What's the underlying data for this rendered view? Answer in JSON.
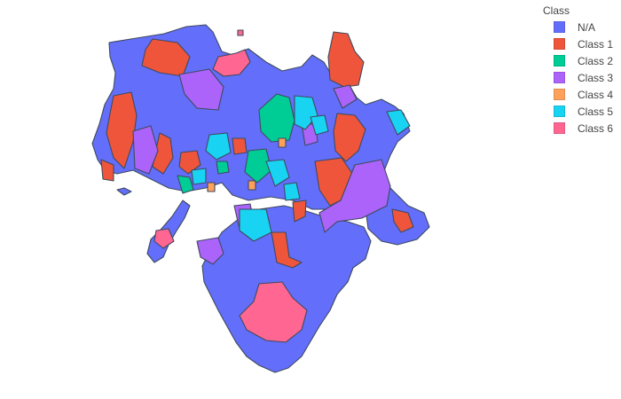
{
  "legend": {
    "title": "Class",
    "items": [
      {
        "label": "N/A",
        "color": "#636EFA"
      },
      {
        "label": "Class 1",
        "color": "#EF553B"
      },
      {
        "label": "Class 2",
        "color": "#00CC96"
      },
      {
        "label": "Class 3",
        "color": "#AB63FA"
      },
      {
        "label": "Class 4",
        "color": "#FFA15A"
      },
      {
        "label": "Class 5",
        "color": "#19D3F3"
      },
      {
        "label": "Class 6",
        "color": "#FF6692"
      }
    ]
  },
  "colors": {
    "border": "#3f4a5e",
    "background": "#ffffff"
  }
}
